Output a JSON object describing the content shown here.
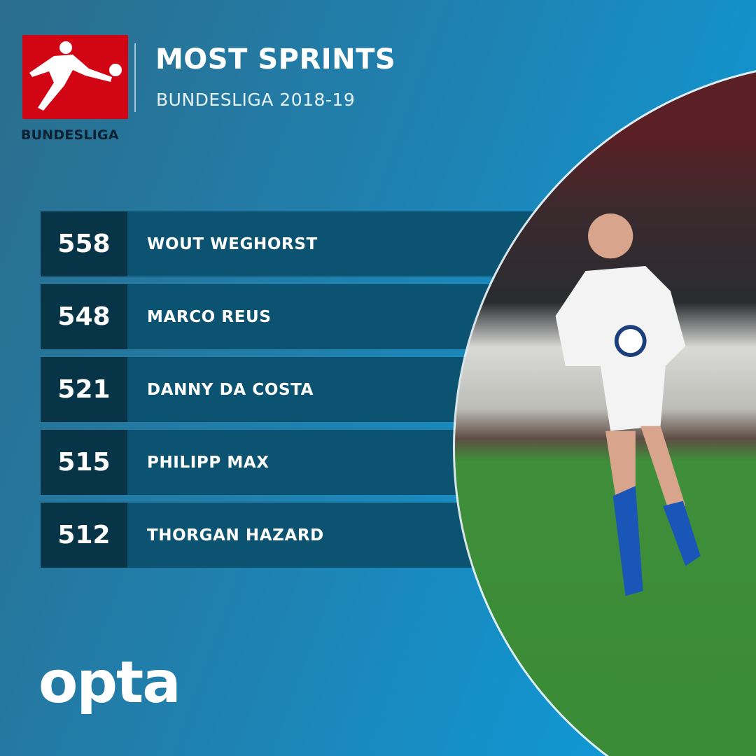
{
  "header": {
    "title": "MOST SPRINTS",
    "subtitle": "BUNDESLIGA 2018-19",
    "logo_text": "BUNDESLIGA"
  },
  "rows": [
    {
      "value": "558",
      "name": "WOUT WEGHORST"
    },
    {
      "value": "548",
      "name": "MARCO REUS"
    },
    {
      "value": "521",
      "name": "DANNY DA COSTA"
    },
    {
      "value": "515",
      "name": "PHILIPP MAX"
    },
    {
      "value": "512",
      "name": "THORGAN HAZARD"
    }
  ],
  "footer": {
    "brand": "opta"
  },
  "colors": {
    "logo_red": "#d20515",
    "row_bg": "#0b5370",
    "num_bg": "#073447",
    "accent": "#0a9fe0"
  }
}
